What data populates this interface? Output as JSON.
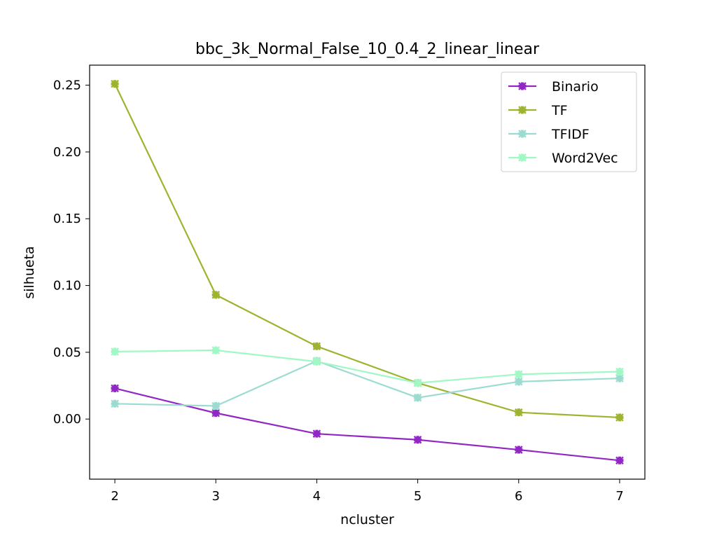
{
  "chart_data": {
    "type": "line",
    "title": "bbc_3k_Normal_False_10_0.4_2_linear_linear",
    "xlabel": "ncluster",
    "ylabel": "silhueta",
    "x": [
      2,
      3,
      4,
      5,
      6,
      7
    ],
    "xlim": [
      1.75,
      7.25
    ],
    "ylim": [
      -0.045,
      0.265
    ],
    "xticks": [
      "2",
      "3",
      "4",
      "5",
      "6",
      "7"
    ],
    "yticks": [
      "0.00",
      "0.05",
      "0.10",
      "0.15",
      "0.20",
      "0.25"
    ],
    "ytick_values": [
      0.0,
      0.05,
      0.1,
      0.15,
      0.2,
      0.25
    ],
    "grid": false,
    "legend_position": "top-right",
    "series": [
      {
        "name": "Binario",
        "color": "#9127c4",
        "values": [
          0.023,
          0.0045,
          -0.011,
          -0.0155,
          -0.023,
          -0.031
        ]
      },
      {
        "name": "TF",
        "color": "#9db42e",
        "values": [
          0.251,
          0.093,
          0.0545,
          0.027,
          0.005,
          0.0012
        ]
      },
      {
        "name": "TFIDF",
        "color": "#9cdcd0",
        "values": [
          0.0115,
          0.0098,
          0.0435,
          0.016,
          0.028,
          0.0305
        ]
      },
      {
        "name": "Word2Vec",
        "color": "#a0f8c4",
        "values": [
          0.0505,
          0.0515,
          0.043,
          0.027,
          0.0335,
          0.0355
        ]
      }
    ]
  }
}
